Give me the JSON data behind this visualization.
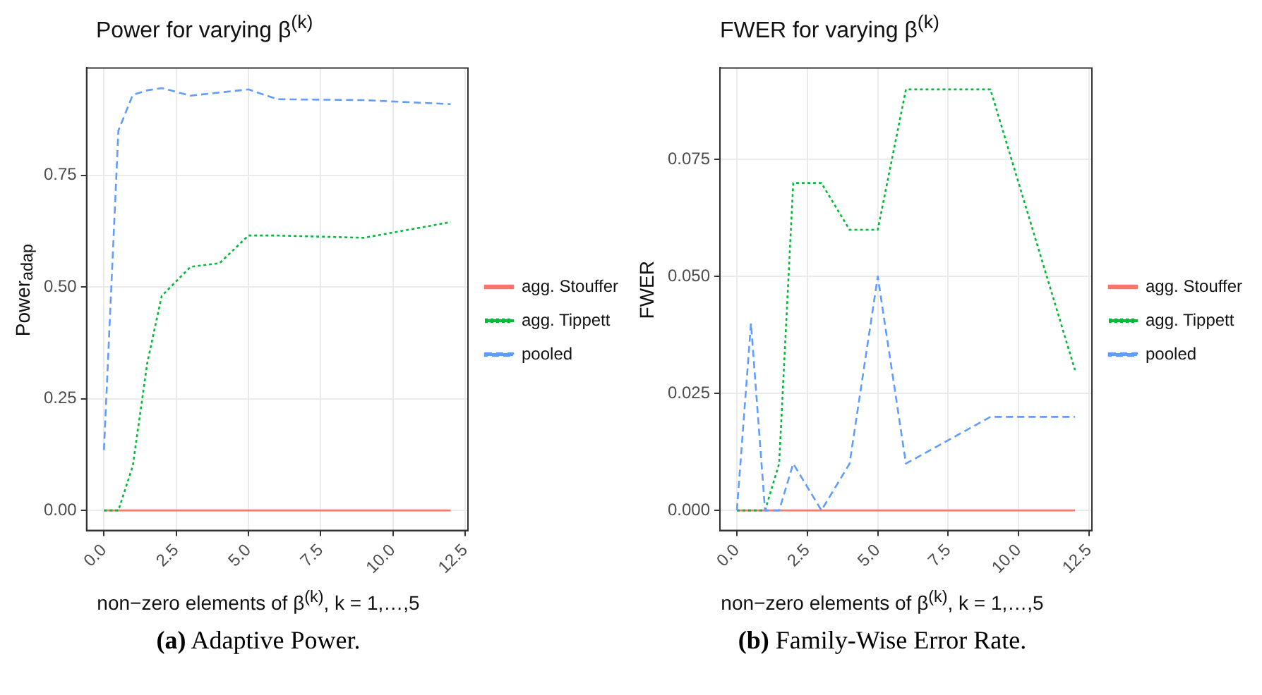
{
  "chart_data": [
    {
      "type": "line",
      "title": "Power for varying  β$^{(k)}$",
      "xlabel": "non−zero elements of β$^{(k)}$, k = 1,…,5",
      "ylabel": "Power$_{adap}$",
      "x": [
        0,
        0.5,
        1,
        1.5,
        2,
        3,
        4,
        5,
        6,
        9,
        12
      ],
      "series": [
        {
          "name": "agg. Stouffer",
          "color": "#f8766d",
          "line_style": "solid",
          "values": [
            0,
            0,
            0,
            0,
            0,
            0,
            0,
            0,
            0,
            0,
            0
          ]
        },
        {
          "name": "agg. Tippett",
          "color": "#00ba38",
          "line_style": "dotted",
          "values": [
            0,
            0,
            0.1,
            0.33,
            0.48,
            0.545,
            0.553,
            0.615,
            0.615,
            0.61,
            0.645
          ]
        },
        {
          "name": "pooled",
          "color": "#619cff",
          "line_style": "dashed",
          "values": [
            0.135,
            0.85,
            0.93,
            0.94,
            0.945,
            0.928,
            0.935,
            0.942,
            0.92,
            0.918,
            0.909
          ]
        }
      ],
      "xlim": [
        -0.6,
        12.6
      ],
      "xticks": [
        {
          "value": 0,
          "label": "0.0"
        },
        2.5,
        {
          "value": 5,
          "label": "5.0"
        },
        7.5,
        {
          "value": 10,
          "label": "10.0"
        },
        12.5
      ],
      "ylim": [
        -0.045,
        0.99
      ],
      "yticks": [
        {
          "value": 0,
          "label": "0.00"
        },
        0.25,
        {
          "value": 0.5,
          "label": "0.50"
        },
        0.75
      ],
      "grid": true,
      "legend": "right",
      "marker": "none",
      "annotations": [
        "(a) Adaptive Power."
      ]
    },
    {
      "type": "line",
      "title": "FWER for varying  β$^{(k)}$",
      "xlabel": "non−zero elements of β$^{(k)}$, k = 1,…,5",
      "ylabel": "FWER",
      "x": [
        0,
        0.5,
        1,
        1.5,
        2,
        3,
        4,
        5,
        6,
        9,
        12
      ],
      "series": [
        {
          "name": "agg. Stouffer",
          "color": "#f8766d",
          "line_style": "solid",
          "values": [
            0,
            0,
            0,
            0,
            0,
            0,
            0,
            0,
            0,
            0,
            0
          ]
        },
        {
          "name": "agg. Tippett",
          "color": "#00ba38",
          "line_style": "dotted",
          "values": [
            0,
            0,
            0,
            0.01,
            0.07,
            0.07,
            0.06,
            0.06,
            0.09,
            0.09,
            0.03
          ]
        },
        {
          "name": "pooled",
          "color": "#619cff",
          "line_style": "dashed",
          "values": [
            0,
            0.04,
            0,
            0,
            0.01,
            0,
            0.01,
            0.05,
            0.01,
            0.02,
            0.02
          ]
        }
      ],
      "xlim": [
        -0.6,
        12.6
      ],
      "xticks": [
        {
          "value": 0,
          "label": "0.0"
        },
        2.5,
        {
          "value": 5,
          "label": "5.0"
        },
        7.5,
        {
          "value": 10,
          "label": "10.0"
        },
        12.5
      ],
      "ylim": [
        -0.0043,
        0.0946
      ],
      "yticks": [
        {
          "value": 0,
          "label": "0.000"
        },
        0.025,
        {
          "value": 0.05,
          "label": "0.050"
        },
        0.075
      ],
      "grid": true,
      "legend": "right",
      "marker": "none",
      "annotations": [
        "(b) Family-Wise Error Rate."
      ]
    }
  ]
}
